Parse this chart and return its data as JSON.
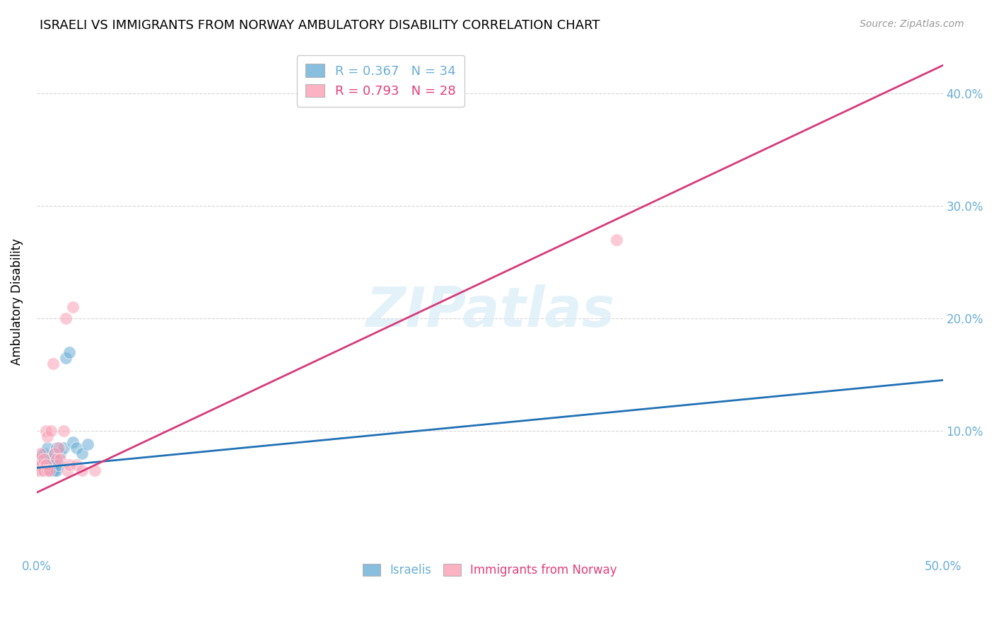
{
  "title": "ISRAELI VS IMMIGRANTS FROM NORWAY AMBULATORY DISABILITY CORRELATION CHART",
  "source": "Source: ZipAtlas.com",
  "ylabel": "Ambulatory Disability",
  "xlabel": "",
  "xlim": [
    0.0,
    0.5
  ],
  "ylim": [
    -0.01,
    0.44
  ],
  "ytick_positions": [
    0.1,
    0.2,
    0.3,
    0.4
  ],
  "ytick_labels": [
    "10.0%",
    "20.0%",
    "30.0%",
    "40.0%"
  ],
  "legend_r_blue": "R = 0.367",
  "legend_n_blue": "N = 34",
  "legend_r_pink": "R = 0.793",
  "legend_n_pink": "N = 28",
  "watermark": "ZIPatlas",
  "blue_color": "#6baed6",
  "pink_color": "#fa9fb5",
  "blue_line_color": "#2171b5",
  "pink_line_color": "#d63a7a",
  "axis_color": "#6baed6",
  "pink_text_color": "#e0407a",
  "background_color": "#ffffff",
  "grid_color": "#cccccc",
  "israelis_x": [
    0.001,
    0.001,
    0.002,
    0.002,
    0.003,
    0.003,
    0.003,
    0.004,
    0.004,
    0.005,
    0.005,
    0.005,
    0.006,
    0.006,
    0.006,
    0.007,
    0.007,
    0.008,
    0.008,
    0.009,
    0.009,
    0.01,
    0.01,
    0.011,
    0.011,
    0.012,
    0.013,
    0.015,
    0.016,
    0.018,
    0.02,
    0.022,
    0.025,
    0.028
  ],
  "israelis_y": [
    0.075,
    0.068,
    0.07,
    0.065,
    0.072,
    0.065,
    0.078,
    0.07,
    0.08,
    0.068,
    0.075,
    0.065,
    0.085,
    0.07,
    0.065,
    0.075,
    0.068,
    0.07,
    0.065,
    0.075,
    0.065,
    0.08,
    0.065,
    0.085,
    0.065,
    0.07,
    0.08,
    0.085,
    0.165,
    0.17,
    0.09,
    0.085,
    0.08,
    0.088
  ],
  "norway_x": [
    0.001,
    0.001,
    0.002,
    0.002,
    0.003,
    0.003,
    0.004,
    0.004,
    0.005,
    0.005,
    0.006,
    0.006,
    0.007,
    0.008,
    0.009,
    0.01,
    0.011,
    0.012,
    0.013,
    0.015,
    0.016,
    0.017,
    0.018,
    0.02,
    0.022,
    0.025,
    0.032,
    0.32
  ],
  "norway_y": [
    0.065,
    0.075,
    0.068,
    0.08,
    0.07,
    0.065,
    0.075,
    0.065,
    0.07,
    0.1,
    0.065,
    0.095,
    0.065,
    0.1,
    0.16,
    0.08,
    0.075,
    0.085,
    0.075,
    0.1,
    0.2,
    0.065,
    0.07,
    0.21,
    0.07,
    0.065,
    0.065,
    0.27
  ],
  "blue_trendline_x": [
    0.0,
    0.5
  ],
  "blue_trendline_y": [
    0.067,
    0.145
  ],
  "pink_trendline_x": [
    0.0,
    0.5
  ],
  "pink_trendline_y": [
    0.045,
    0.425
  ]
}
